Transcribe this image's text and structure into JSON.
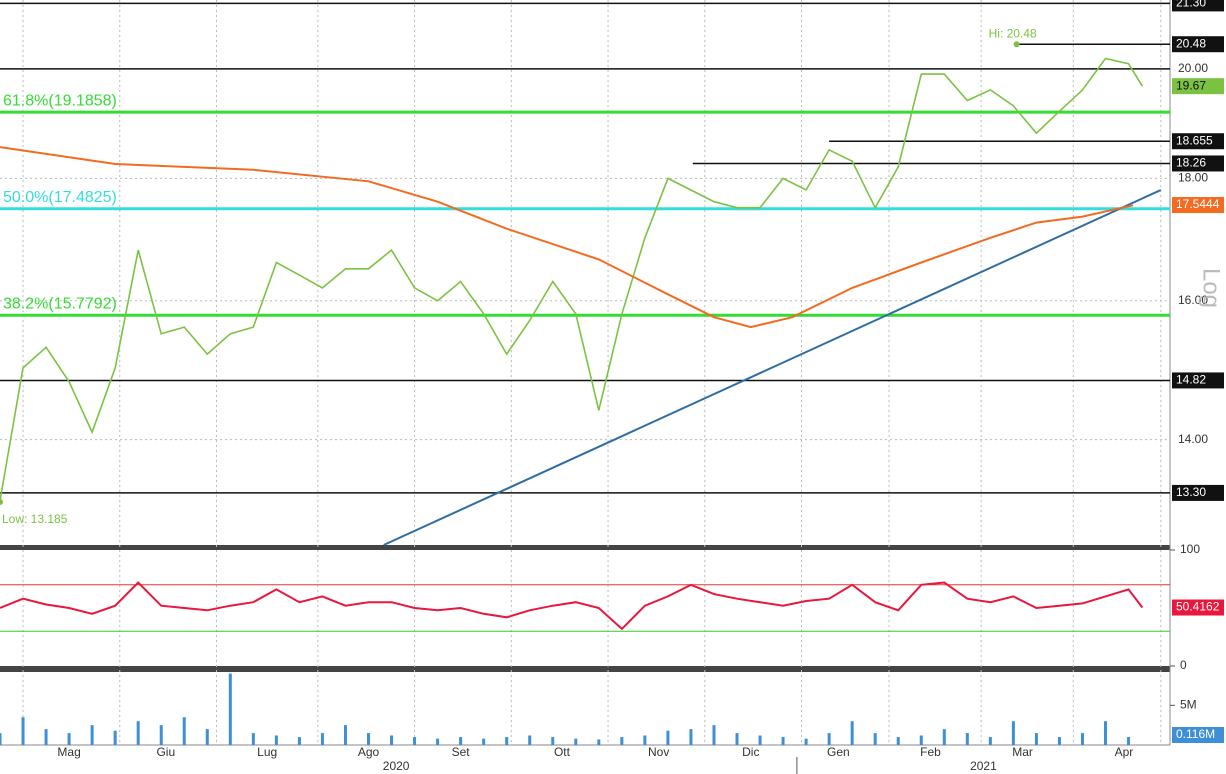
{
  "chart_data": [
    {
      "type": "line",
      "log_scale": true,
      "grid": true,
      "ylim": [
        12.65,
        21.37
      ],
      "yticks": [
        {
          "value": 14,
          "label": "14.00"
        },
        {
          "value": 16,
          "label": "16.00"
        },
        {
          "value": 18,
          "label": "18.00"
        }
      ],
      "xlim": [
        0,
        254
      ],
      "xgrid": [
        5,
        26,
        47,
        69,
        90,
        111,
        132,
        153,
        174,
        193,
        213,
        233,
        252
      ],
      "xticks": [
        {
          "value": 15,
          "label": "Mag"
        },
        {
          "value": 36,
          "label": "Giu"
        },
        {
          "value": 58,
          "label": "Lug"
        },
        {
          "value": 80,
          "label": "Ago"
        },
        {
          "value": 100,
          "label": "Set"
        },
        {
          "value": 122,
          "label": "Ott"
        },
        {
          "value": 143,
          "label": "Nov"
        },
        {
          "value": 163,
          "label": "Dic"
        },
        {
          "value": 182,
          "label": "Gen"
        },
        {
          "value": 202,
          "label": "Feb"
        },
        {
          "value": 222,
          "label": "Mar"
        },
        {
          "value": 244,
          "label": "Apr"
        }
      ],
      "years": [
        {
          "value": 86,
          "label": "2020"
        },
        {
          "value": 213.5,
          "label": "2021"
        }
      ],
      "year_split": 173,
      "axis_label": "Log",
      "series": [
        {
          "color": "#7cc242",
          "x": [
            0,
            5,
            10,
            15,
            20,
            25,
            30,
            35,
            40,
            45,
            50,
            55,
            60,
            65,
            70,
            75,
            80,
            85,
            90,
            95,
            100,
            105,
            110,
            115,
            120,
            125,
            130,
            135,
            140,
            145,
            150,
            155,
            160,
            165,
            170,
            175,
            180,
            185,
            190,
            195,
            200,
            205,
            210,
            215,
            220,
            225,
            230,
            235,
            240,
            245,
            248
          ],
          "values": [
            13.2,
            15.0,
            15.3,
            14.8,
            14.1,
            15.0,
            16.8,
            15.5,
            15.6,
            15.2,
            15.5,
            15.6,
            16.6,
            16.4,
            16.2,
            16.5,
            16.5,
            16.8,
            16.2,
            16.0,
            16.3,
            15.8,
            15.2,
            15.7,
            16.3,
            15.8,
            14.4,
            15.8,
            17.0,
            18.0,
            17.8,
            17.6,
            17.5,
            17.5,
            18.0,
            17.8,
            18.5,
            18.3,
            17.5,
            18.2,
            19.9,
            19.9,
            19.4,
            19.6,
            19.3,
            18.8,
            19.2,
            19.6,
            20.2,
            20.1,
            19.67
          ],
          "last_label": {
            "value": 19.67,
            "label": "19.67"
          }
        },
        {
          "color": "#f26b21",
          "x": [
            0,
            25,
            55,
            80,
            95,
            110,
            130,
            145,
            155,
            163,
            172,
            185,
            200,
            215,
            225,
            235,
            246
          ],
          "values": [
            18.55,
            18.25,
            18.15,
            17.95,
            17.6,
            17.15,
            16.65,
            16.1,
            15.75,
            15.6,
            15.75,
            16.2,
            16.6,
            17.0,
            17.25,
            17.35,
            17.54
          ],
          "last_label": {
            "value": 17.5444,
            "label": "17.5444"
          }
        }
      ],
      "trendline": {
        "color": "#2e6da4",
        "x": [
          83.3,
          252
        ],
        "values": [
          12.65,
          17.8
        ]
      },
      "levels": [
        {
          "value": 21.3,
          "label": "21.30",
          "x_start": 0,
          "boxed": true
        },
        {
          "value": 20.48,
          "label": "20.48",
          "x_start": 220.7,
          "boxed": true
        },
        {
          "value": 20.0,
          "label": "20.00",
          "x_start": 0,
          "boxed": false
        },
        {
          "value": 18.655,
          "label": "18.655",
          "x_start": 180,
          "boxed": true
        },
        {
          "value": 18.26,
          "label": "18.26",
          "x_start": 150.4,
          "boxed": true
        },
        {
          "value": 14.82,
          "label": "14.82",
          "x_start": 0,
          "boxed": true
        },
        {
          "value": 13.3,
          "label": "13.30",
          "x_start": 0,
          "boxed": true
        }
      ],
      "fibs": [
        {
          "value": 19.1858,
          "label": "61.8%(19.1858)",
          "color": "#33dd33"
        },
        {
          "value": 17.4825,
          "label": "50.0%(17.4825)",
          "color": "#33dddd"
        },
        {
          "value": 15.7792,
          "label": "38.2%(15.7792)",
          "color": "#33dd33"
        }
      ],
      "annotations": [
        {
          "text": "Hi: 20.48",
          "x": 220.7,
          "value": 20.48
        },
        {
          "text": "Low: 13.185",
          "x": 0,
          "value": 13.185
        }
      ]
    },
    {
      "type": "rsi",
      "ylim": [
        0,
        100
      ],
      "yticks": [
        0,
        100
      ],
      "levels": [
        70,
        30
      ],
      "color": "#e8173d",
      "x": [
        0,
        5,
        10,
        15,
        20,
        25,
        30,
        35,
        40,
        45,
        50,
        55,
        60,
        65,
        70,
        75,
        80,
        85,
        90,
        95,
        100,
        105,
        110,
        115,
        120,
        125,
        130,
        135,
        140,
        145,
        150,
        155,
        160,
        165,
        170,
        175,
        180,
        185,
        190,
        195,
        200,
        205,
        210,
        215,
        220,
        225,
        230,
        235,
        240,
        245,
        248
      ],
      "values": [
        50,
        58,
        53,
        50,
        45,
        52,
        72,
        52,
        50,
        48,
        52,
        55,
        66,
        55,
        60,
        52,
        55,
        55,
        50,
        48,
        50,
        45,
        42,
        48,
        52,
        55,
        50,
        32,
        52,
        60,
        70,
        62,
        58,
        55,
        52,
        56,
        58,
        70,
        55,
        48,
        70,
        72,
        58,
        55,
        60,
        50,
        52,
        54,
        60,
        66,
        50.4162
      ],
      "last_label": {
        "value": 50.4162,
        "label": "50.4162"
      }
    },
    {
      "type": "volume",
      "ylim": [
        0,
        9.2
      ],
      "yticks": [
        {
          "value": 5,
          "label": "5M"
        }
      ],
      "color": "#3d8fd6",
      "x": [
        0,
        5,
        10,
        15,
        20,
        25,
        30,
        35,
        40,
        45,
        50,
        55,
        60,
        65,
        70,
        75,
        80,
        85,
        90,
        95,
        100,
        105,
        110,
        115,
        120,
        125,
        130,
        135,
        140,
        145,
        150,
        155,
        160,
        165,
        170,
        175,
        180,
        185,
        190,
        195,
        200,
        205,
        210,
        215,
        220,
        225,
        230,
        235,
        240,
        245
      ],
      "values": [
        1.5,
        3.5,
        2,
        1.5,
        2.5,
        1.8,
        3,
        2.5,
        3.5,
        2,
        9,
        1.5,
        1.2,
        1,
        1.5,
        2.5,
        1.5,
        1.2,
        1,
        0.8,
        1,
        0.8,
        1,
        1.2,
        1,
        0.8,
        0.7,
        1,
        1.2,
        1.8,
        2,
        2.5,
        1.5,
        1.2,
        1,
        0.8,
        1.5,
        3,
        1.5,
        1,
        1.2,
        2,
        1.5,
        1,
        3,
        1.5,
        1,
        1.5,
        3,
        1
      ],
      "last_label": {
        "value": 0.116,
        "label": "0.116M"
      }
    }
  ]
}
